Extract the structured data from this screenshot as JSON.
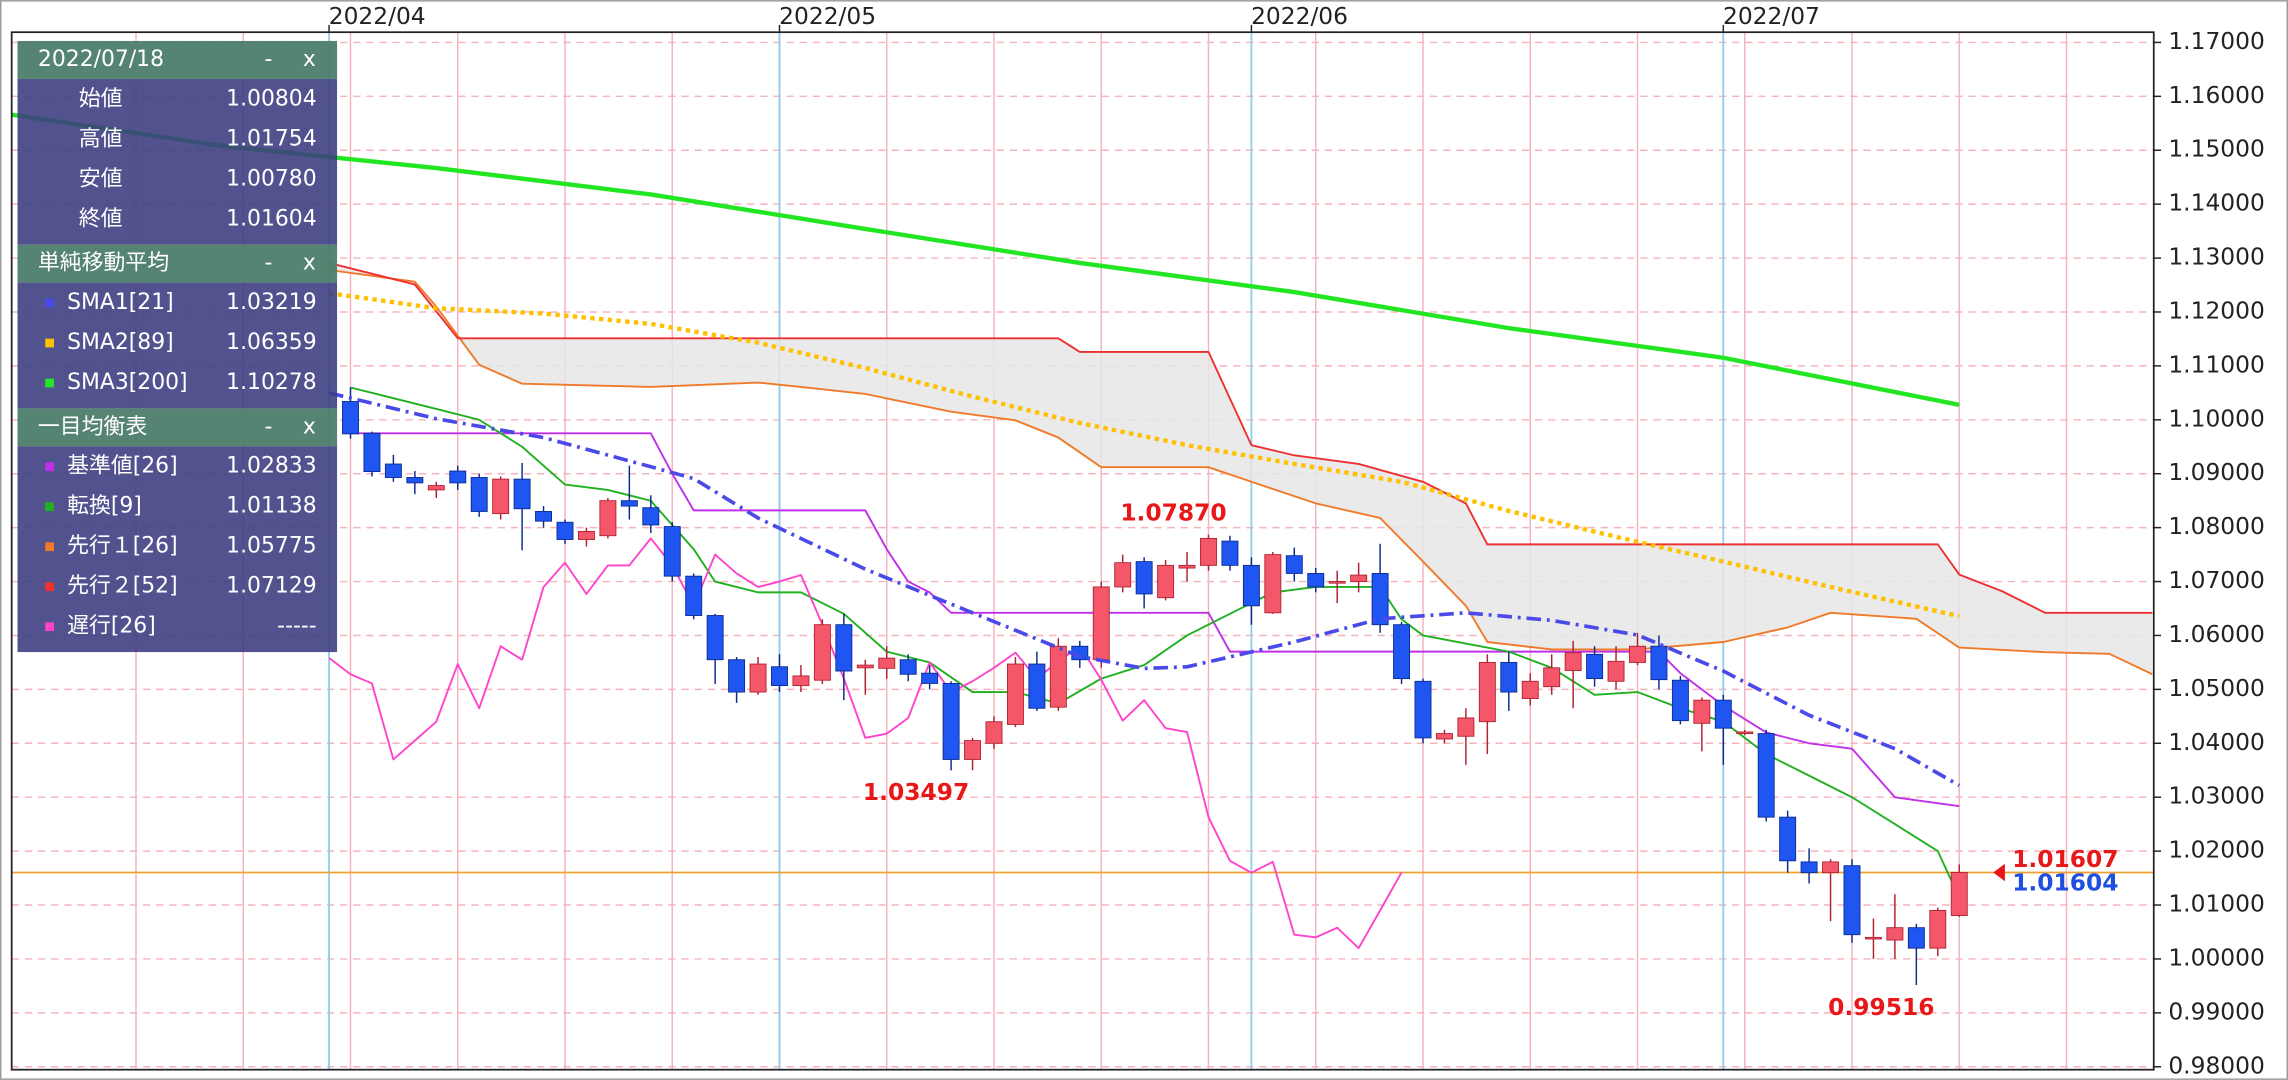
{
  "chart_data": {
    "type": "candlestick",
    "xlim": [
      0,
      100
    ],
    "xticks": [
      {
        "value": 15,
        "label": "2022/04"
      },
      {
        "value": 36,
        "label": "2022/05"
      },
      {
        "value": 58,
        "label": "2022/06"
      },
      {
        "value": 80,
        "label": "2022/07"
      }
    ],
    "xgrid": [
      6,
      11,
      16,
      21,
      26,
      31,
      36,
      41,
      46,
      51,
      56,
      61,
      66,
      71,
      76,
      81,
      86,
      91,
      96
    ],
    "ylim": [
      0.98,
      1.17
    ],
    "yticks": [
      {
        "value": 0.98,
        "label": "0.98000"
      },
      {
        "value": 0.99,
        "label": "0.99000"
      },
      {
        "value": 1.0,
        "label": "1.00000"
      },
      {
        "value": 1.01,
        "label": "1.01000"
      },
      {
        "value": 1.02,
        "label": "1.02000"
      },
      {
        "value": 1.03,
        "label": "1.03000"
      },
      {
        "value": 1.04,
        "label": "1.04000"
      },
      {
        "value": 1.05,
        "label": "1.05000"
      },
      {
        "value": 1.06,
        "label": "1.06000"
      },
      {
        "value": 1.07,
        "label": "1.07000"
      },
      {
        "value": 1.08,
        "label": "1.08000"
      },
      {
        "value": 1.09,
        "label": "1.09000"
      },
      {
        "value": 1.1,
        "label": "1.10000"
      },
      {
        "value": 1.11,
        "label": "1.11000"
      },
      {
        "value": 1.12,
        "label": "1.12000"
      },
      {
        "value": 1.13,
        "label": "1.13000"
      },
      {
        "value": 1.14,
        "label": "1.14000"
      },
      {
        "value": 1.15,
        "label": "1.15000"
      },
      {
        "value": 1.16,
        "label": "1.16000"
      },
      {
        "value": 1.17,
        "label": "1.17000"
      }
    ],
    "grid": true,
    "up_color": "#f4566a",
    "down_color": "#1f55f0",
    "x": [
      16,
      17,
      18,
      19,
      20,
      21,
      22,
      23,
      24,
      25,
      26,
      27,
      28,
      29,
      30,
      31,
      32,
      33,
      34,
      35,
      36,
      37,
      38,
      39,
      40,
      41,
      42,
      43,
      44,
      45,
      46,
      47,
      48,
      49,
      50,
      51,
      52,
      53,
      54,
      55,
      56,
      57,
      58,
      59,
      60,
      61,
      62,
      63,
      64,
      65,
      66,
      67,
      68,
      69,
      70,
      71,
      72,
      73,
      74,
      75,
      76,
      77,
      78,
      79,
      80,
      81,
      82,
      83,
      84,
      85,
      86,
      87,
      88,
      89,
      90,
      91
    ],
    "open": [
      1.1034,
      1.0975,
      1.0918,
      1.0893,
      1.087,
      1.0905,
      1.0893,
      1.0826,
      1.089,
      1.083,
      1.081,
      1.0778,
      1.0785,
      1.085,
      1.0837,
      1.0802,
      1.071,
      1.0637,
      1.0555,
      1.0495,
      1.0542,
      1.0507,
      1.0517,
      1.062,
      1.054,
      1.0539,
      1.0555,
      1.053,
      1.0511,
      1.037,
      1.04,
      1.0435,
      1.0547,
      1.0467,
      1.058,
      1.0555,
      1.069,
      1.0737,
      1.067,
      1.0725,
      1.073,
      1.0775,
      1.073,
      1.0642,
      1.0748,
      1.0715,
      1.0697,
      1.07,
      1.0715,
      1.062,
      1.0515,
      1.0408,
      1.0413,
      1.044,
      1.055,
      1.0483,
      1.0505,
      1.0535,
      1.0565,
      1.0515,
      1.055,
      1.058,
      1.0517,
      1.0437,
      1.048,
      1.0418,
      1.0418,
      1.0263,
      1.018,
      1.016,
      1.0173,
      1.0037,
      1.0035,
      1.0058,
      1.002,
      1.00804
    ],
    "high": [
      1.106,
      1.0978,
      1.0935,
      1.0905,
      1.0885,
      1.0915,
      1.09,
      1.0895,
      1.092,
      1.084,
      1.0815,
      1.08,
      1.0855,
      1.0915,
      1.086,
      1.081,
      1.0715,
      1.064,
      1.056,
      1.056,
      1.0565,
      1.0545,
      1.063,
      1.064,
      1.0555,
      1.058,
      1.0565,
      1.0545,
      1.0515,
      1.041,
      1.045,
      1.056,
      1.057,
      1.0595,
      1.059,
      1.07,
      1.075,
      1.0745,
      1.074,
      1.0755,
      1.0787,
      1.0785,
      1.0745,
      1.0755,
      1.0763,
      1.0725,
      1.072,
      1.0735,
      1.077,
      1.0625,
      1.052,
      1.0425,
      1.0465,
      1.0565,
      1.057,
      1.053,
      1.0565,
      1.059,
      1.058,
      1.058,
      1.0605,
      1.06,
      1.0525,
      1.0485,
      1.049,
      1.0425,
      1.0425,
      1.0275,
      1.0205,
      1.0185,
      1.0185,
      1.0075,
      1.012,
      1.0065,
      1.0095,
      1.01754
    ],
    "low": [
      1.0965,
      1.0895,
      1.0885,
      1.0862,
      1.0855,
      1.087,
      1.082,
      1.0815,
      1.0758,
      1.08,
      1.077,
      1.0765,
      1.078,
      1.0815,
      1.079,
      1.07,
      1.063,
      1.051,
      1.0475,
      1.049,
      1.0495,
      1.0495,
      1.051,
      1.048,
      1.049,
      1.052,
      1.0515,
      1.05,
      1.03497,
      1.035,
      1.039,
      1.043,
      1.046,
      1.046,
      1.054,
      1.054,
      1.068,
      1.065,
      1.0665,
      1.07,
      1.072,
      1.072,
      1.062,
      1.064,
      1.07,
      1.068,
      1.066,
      1.068,
      1.0605,
      1.051,
      1.04,
      1.04,
      1.036,
      1.038,
      1.046,
      1.047,
      1.049,
      1.0465,
      1.0505,
      1.05,
      1.0545,
      1.05,
      1.0435,
      1.0385,
      1.036,
      1.0415,
      1.0255,
      1.016,
      1.014,
      1.007,
      1.003,
      1.0,
      1.0,
      0.99516,
      1.0005,
      1.0078
    ],
    "close": [
      1.0974,
      1.0904,
      1.0893,
      1.0883,
      1.0878,
      1.0883,
      1.083,
      1.089,
      1.0835,
      1.0812,
      1.0778,
      1.0793,
      1.085,
      1.084,
      1.0805,
      1.071,
      1.0637,
      1.0555,
      1.0495,
      1.0547,
      1.0507,
      1.0525,
      1.062,
      1.0534,
      1.0545,
      1.0558,
      1.0528,
      1.0511,
      1.037,
      1.0405,
      1.044,
      1.0547,
      1.0465,
      1.058,
      1.0555,
      1.069,
      1.0735,
      1.0677,
      1.073,
      1.073,
      1.078,
      1.073,
      1.0655,
      1.075,
      1.0715,
      1.069,
      1.07,
      1.0712,
      1.062,
      1.052,
      1.041,
      1.0418,
      1.0447,
      1.055,
      1.0495,
      1.0515,
      1.054,
      1.0568,
      1.052,
      1.0552,
      1.058,
      1.0518,
      1.0442,
      1.048,
      1.0428,
      1.0421,
      1.0263,
      1.0182,
      1.016,
      1.018,
      1.0045,
      1.004,
      1.0058,
      1.002,
      1.009,
      1.01604
    ],
    "cloud_color": "#e6e6e6",
    "overlays": [
      {
        "name": "SMA3[200]",
        "color": "#22e622",
        "width": 3,
        "dash": "none",
        "x": [
          0,
          10,
          20,
          30,
          40,
          50,
          60,
          70,
          80,
          91
        ],
        "values": [
          1.1567,
          1.1508,
          1.1467,
          1.1418,
          1.1354,
          1.1291,
          1.1237,
          1.117,
          1.1115,
          1.10278
        ]
      },
      {
        "name": "SMA2[89]",
        "color": "#ffc000",
        "width": 3,
        "dash": "3 3",
        "x": [
          15,
          20,
          25,
          30,
          35,
          40,
          45,
          50,
          55,
          60,
          65,
          70,
          75,
          80,
          85,
          91
        ],
        "values": [
          1.1235,
          1.1207,
          1.1197,
          1.1178,
          1.1143,
          1.1096,
          1.1043,
          1.0994,
          1.0953,
          1.0918,
          1.0885,
          1.0831,
          1.0783,
          1.0737,
          1.069,
          1.06359
        ]
      },
      {
        "name": "SMA1[21]",
        "color": "#4a4ae8",
        "width": 2.5,
        "dash": "10 4 2 4",
        "x": [
          15,
          20,
          25,
          30,
          32,
          35,
          40,
          45,
          50,
          53,
          55,
          60,
          64,
          68,
          72,
          76,
          80,
          84,
          88,
          91
        ],
        "values": [
          1.105,
          1.1002,
          1.0967,
          1.0913,
          1.0891,
          1.0818,
          1.0723,
          1.0642,
          1.0561,
          1.0539,
          1.0542,
          1.0588,
          1.0631,
          1.0642,
          1.0628,
          1.0601,
          1.0534,
          1.0452,
          1.039,
          1.03219
        ]
      },
      {
        "name": "先行１[26]",
        "color": "#f07a2a",
        "width": 1.3,
        "dash": "none",
        "cloud": "upper",
        "x": [
          15,
          19,
          20,
          22,
          24,
          30,
          35,
          37,
          40,
          44,
          47,
          49,
          51,
          56,
          58,
          61,
          64,
          66,
          68,
          69,
          72,
          76,
          80,
          83,
          85,
          89,
          91,
          95,
          98,
          100
        ],
        "values": [
          1.1278,
          1.1256,
          1.121,
          1.1102,
          1.1067,
          1.1061,
          1.1069,
          1.1061,
          1.1048,
          1.1015,
          1.0999,
          1.0967,
          1.0912,
          1.0912,
          1.0885,
          1.0845,
          1.0818,
          1.0737,
          1.0655,
          1.0588,
          1.0574,
          1.0574,
          1.0588,
          1.0615,
          1.0642,
          1.0631,
          1.05775,
          1.0569,
          1.0566,
          1.0528
        ]
      },
      {
        "name": "先行２[52]",
        "color": "#ee3030",
        "width": 1.3,
        "dash": "none",
        "cloud": "lower",
        "x": [
          15,
          19,
          21,
          49,
          50,
          56,
          58,
          60,
          63,
          66,
          68,
          69,
          90,
          91,
          93,
          95,
          100
        ],
        "values": [
          1.1291,
          1.1251,
          1.1151,
          1.1151,
          1.1126,
          1.1126,
          1.0953,
          1.0934,
          1.0918,
          1.0885,
          1.0845,
          1.0769,
          1.0769,
          1.07129,
          1.0682,
          1.0642,
          1.0642
        ]
      },
      {
        "name": "基準値[26]",
        "color": "#c030e8",
        "width": 1.3,
        "dash": "none",
        "x": [
          16,
          30,
          31,
          32,
          40,
          41,
          42,
          43,
          44,
          56,
          57,
          77,
          78,
          80,
          82,
          84,
          86,
          88,
          91
        ],
        "values": [
          1.0975,
          1.0975,
          1.09,
          1.0832,
          1.0832,
          1.076,
          1.07,
          1.068,
          1.0642,
          1.0642,
          1.057,
          1.057,
          1.053,
          1.047,
          1.042,
          1.04,
          1.039,
          1.03,
          1.02833
        ]
      },
      {
        "name": "転換[9]",
        "color": "#20b020",
        "width": 1.3,
        "dash": "none",
        "x": [
          16,
          20,
          22,
          24,
          26,
          28,
          30,
          32,
          33,
          35,
          37,
          39,
          41,
          43,
          45,
          47,
          49,
          51,
          53,
          55,
          57,
          59,
          61,
          63,
          64,
          65,
          66,
          68,
          70,
          72,
          74,
          76,
          78,
          80,
          82,
          84,
          86,
          88,
          90,
          91
        ],
        "values": [
          1.106,
          1.102,
          1.1,
          1.095,
          1.088,
          1.087,
          1.085,
          1.076,
          1.07,
          1.068,
          1.068,
          1.064,
          1.057,
          1.055,
          1.0495,
          1.0495,
          1.0474,
          1.052,
          1.0545,
          1.06,
          1.064,
          1.068,
          1.069,
          1.069,
          1.069,
          1.063,
          1.06,
          1.0585,
          1.057,
          1.054,
          1.049,
          1.0495,
          1.0465,
          1.044,
          1.038,
          1.034,
          1.03,
          1.025,
          1.02,
          1.01138
        ]
      },
      {
        "name": "遅行[26]",
        "color": "#ff44cc",
        "width": 1.3,
        "dash": "none",
        "x": [
          15,
          16,
          17,
          18,
          19,
          20,
          21,
          22,
          23,
          24,
          25,
          26,
          27,
          28,
          29,
          30,
          31,
          32,
          33,
          34,
          35,
          36,
          37,
          38,
          39,
          40,
          41,
          42,
          43,
          44,
          45,
          46,
          47,
          48,
          49,
          50,
          51,
          52,
          53,
          54,
          55,
          56,
          57,
          58,
          59,
          60,
          61,
          62,
          63,
          64,
          65
        ],
        "values": [
          1.0558,
          1.0528,
          1.0511,
          1.037,
          1.0405,
          1.044,
          1.0547,
          1.0465,
          1.058,
          1.0555,
          1.069,
          1.0735,
          1.0677,
          1.073,
          1.073,
          1.078,
          1.073,
          1.0655,
          1.075,
          1.0715,
          1.069,
          1.07,
          1.0712,
          1.062,
          1.052,
          1.041,
          1.0418,
          1.0447,
          1.055,
          1.0495,
          1.0515,
          1.054,
          1.0568,
          1.052,
          1.0552,
          1.058,
          1.0518,
          1.0442,
          1.048,
          1.0428,
          1.0421,
          1.0263,
          1.0182,
          1.016,
          1.018,
          1.0045,
          1.004,
          1.0058,
          1.002,
          1.009,
          1.01604
        ]
      }
    ],
    "price_line": {
      "value": 1.01604,
      "color": "#f0a030"
    },
    "price_labels": [
      {
        "value": 1.01607,
        "label": "1.01607",
        "color": "#e81818"
      },
      {
        "value": 1.01604,
        "label": "1.01604",
        "color": "#1f4fe0"
      }
    ],
    "annotations": [
      {
        "x": 56,
        "value": 1.0787,
        "label": "1.07870",
        "place": "above"
      },
      {
        "x": 44,
        "value": 1.03497,
        "label": "1.03497",
        "place": "below"
      },
      {
        "x": 89,
        "value": 0.99516,
        "label": "0.99516",
        "place": "below"
      }
    ]
  },
  "panel": {
    "sections": [
      {
        "title": "2022/07/18",
        "buttons": [
          "-",
          "x"
        ],
        "rows": [
          {
            "label": "始値",
            "value": "1.00804"
          },
          {
            "label": "高値",
            "value": "1.01754"
          },
          {
            "label": "安値",
            "value": "1.00780"
          },
          {
            "label": "終値",
            "value": "1.01604"
          }
        ]
      },
      {
        "title": "単純移動平均",
        "buttons": [
          "-",
          "x"
        ],
        "rows": [
          {
            "label": "SMA1[21]",
            "value": "1.03219",
            "color": "#4a4ae8"
          },
          {
            "label": "SMA2[89]",
            "value": "1.06359",
            "color": "#ffc000"
          },
          {
            "label": "SMA3[200]",
            "value": "1.10278",
            "color": "#22e622"
          }
        ]
      },
      {
        "title": "一目均衡表",
        "buttons": [
          "-",
          "x"
        ],
        "rows": [
          {
            "label": "基準値[26]",
            "value": "1.02833",
            "color": "#c030e8"
          },
          {
            "label": "転換[9]",
            "value": "1.01138",
            "color": "#20b020"
          },
          {
            "label": "先行１[26]",
            "value": "1.05775",
            "color": "#f07a2a"
          },
          {
            "label": "先行２[52]",
            "value": "1.07129",
            "color": "#ee3030"
          },
          {
            "label": "遅行[26]",
            "value": "-----",
            "color": "#ff44cc"
          }
        ]
      }
    ]
  }
}
